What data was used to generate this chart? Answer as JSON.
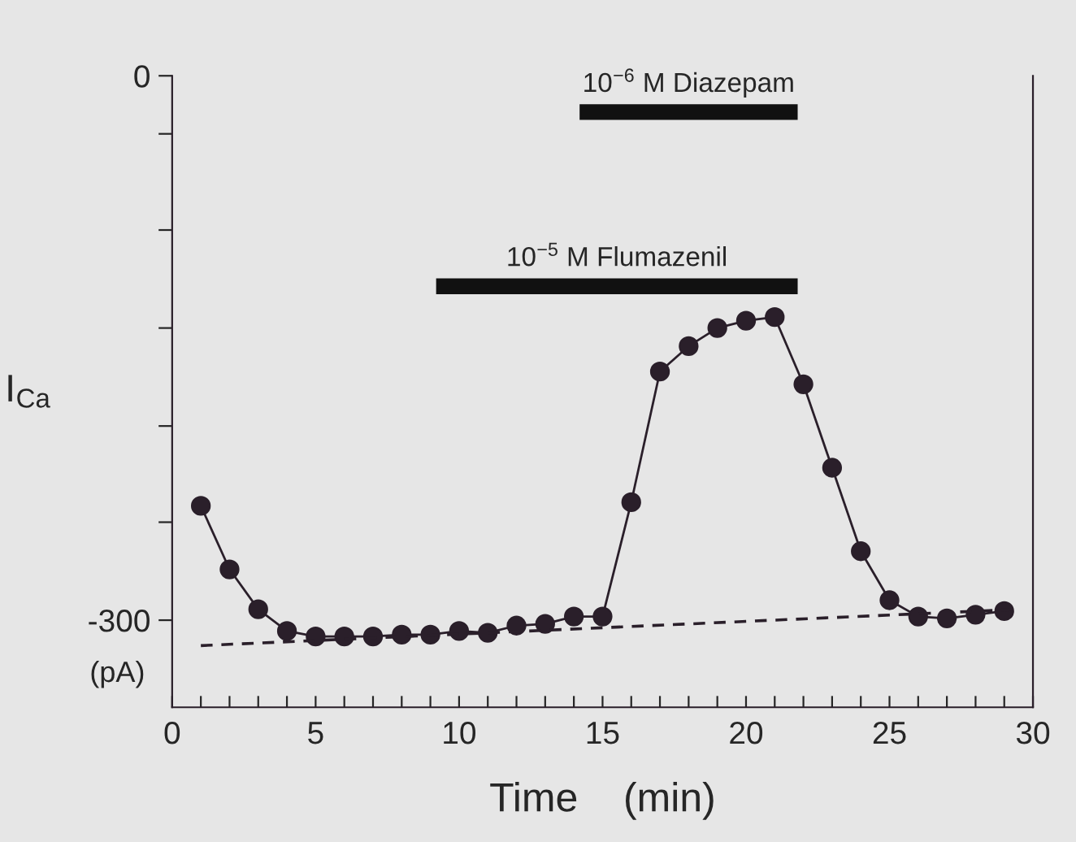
{
  "chart_data": {
    "type": "line",
    "xlabel": "Time    (min)",
    "ylabel": "I$_{Ca}$",
    "annotations": [
      "(pA)"
    ],
    "x": [
      1,
      2,
      3,
      4,
      5,
      6,
      7,
      8,
      9,
      10,
      11,
      12,
      13,
      14,
      15,
      16,
      17,
      18,
      19,
      20,
      21,
      22,
      23,
      24,
      25,
      26,
      27,
      28,
      29
    ],
    "series": [
      {
        "color": "#2a1f2a",
        "marker": "circle",
        "values": [
          -237,
          -272,
          -294,
          -306,
          -309,
          -309,
          -309,
          -308,
          -308,
          -306,
          -307,
          -303,
          -302,
          -298,
          -298,
          -235,
          -163,
          -149,
          -139,
          -135,
          -133,
          -170,
          -216,
          -262,
          -289,
          -298,
          -299,
          -297,
          -295
        ]
      },
      {
        "color": "#2a1f2a",
        "x": [
          1,
          29.5
        ],
        "values": [
          -314,
          -294
        ],
        "line_style": "dashed",
        "marker": "none"
      },
      {
        "name": "10$^{−5}$ M Flumazenil",
        "color": "#111111",
        "x": [
          9.2,
          21.8
        ],
        "values": [
          -116,
          -116
        ],
        "marker": "none"
      },
      {
        "name": "10$^{−6}$ M Diazepam",
        "color": "#111111",
        "x": [
          14.2,
          21.8
        ],
        "values": [
          -20,
          -20
        ],
        "marker": "none"
      }
    ],
    "xlim": [
      0,
      30
    ],
    "xticks": [
      0,
      {
        "value": 1,
        "label": null
      },
      {
        "value": 2,
        "label": null
      },
      {
        "value": 3,
        "label": null
      },
      {
        "value": 4,
        "label": null
      },
      5,
      {
        "value": 6,
        "label": null
      },
      {
        "value": 7,
        "label": null
      },
      {
        "value": 8,
        "label": null
      },
      {
        "value": 9,
        "label": null
      },
      10,
      {
        "value": 11,
        "label": null
      },
      {
        "value": 12,
        "label": null
      },
      {
        "value": 13,
        "label": null
      },
      {
        "value": 14,
        "label": null
      },
      15,
      {
        "value": 16,
        "label": null
      },
      {
        "value": 17,
        "label": null
      },
      {
        "value": 18,
        "label": null
      },
      {
        "value": 19,
        "label": null
      },
      20,
      {
        "value": 21,
        "label": null
      },
      {
        "value": 22,
        "label": null
      },
      {
        "value": 23,
        "label": null
      },
      {
        "value": 24,
        "label": null
      },
      25,
      {
        "value": 26,
        "label": null
      },
      {
        "value": 27,
        "label": null
      },
      {
        "value": 28,
        "label": null
      },
      {
        "value": 29,
        "label": null
      },
      30
    ],
    "ylim": [
      -348,
      0
    ],
    "yticks": [
      0,
      {
        "value": -32,
        "label": null
      },
      {
        "value": -85,
        "label": null
      },
      {
        "value": -139,
        "label": null
      },
      {
        "value": -193,
        "label": null
      },
      {
        "value": -246,
        "label": null
      },
      -300
    ],
    "grid": false,
    "legend": false
  }
}
